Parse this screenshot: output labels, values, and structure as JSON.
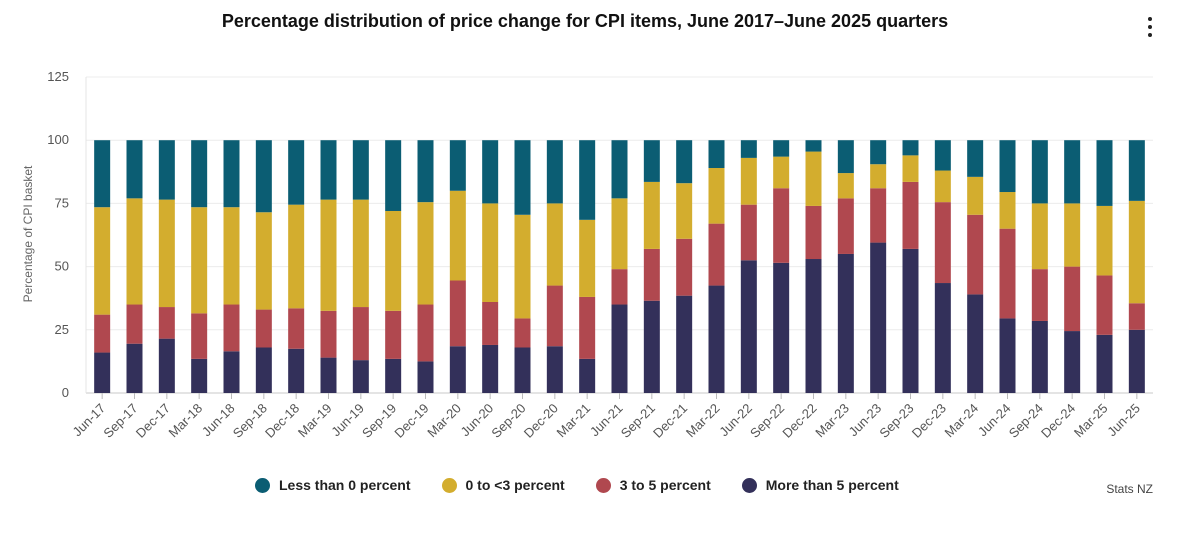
{
  "chart_data": {
    "type": "bar",
    "stacked": true,
    "title": "Percentage distribution of price change for CPI items, June 2017–June 2025 quarters",
    "xlabel": "",
    "ylabel": "Percentage of CPI basket",
    "ylim": [
      0,
      125
    ],
    "yticks": [
      0,
      25,
      50,
      75,
      100,
      125
    ],
    "grid": true,
    "legend_position": "bottom",
    "categories": [
      "Jun-17",
      "Sep-17",
      "Dec-17",
      "Mar-18",
      "Jun-18",
      "Sep-18",
      "Dec-18",
      "Mar-19",
      "Jun-19",
      "Sep-19",
      "Dec-19",
      "Mar-20",
      "Jun-20",
      "Sep-20",
      "Dec-20",
      "Mar-21",
      "Jun-21",
      "Sep-21",
      "Dec-21",
      "Mar-22",
      "Jun-22",
      "Sep-22",
      "Dec-22",
      "Mar-23",
      "Jun-23",
      "Sep-23",
      "Dec-23",
      "Mar-24",
      "Jun-24",
      "Sep-24",
      "Dec-24",
      "Mar-25",
      "Jun-25"
    ],
    "series": [
      {
        "name": "More than 5 percent",
        "color": "#33305a",
        "values": [
          16,
          19.5,
          21.5,
          13.5,
          16.5,
          18,
          17.5,
          14,
          13,
          13.5,
          12.5,
          18.5,
          19,
          18,
          18.5,
          13.5,
          35,
          36.5,
          38.5,
          42.5,
          52.5,
          51.5,
          53,
          55,
          59.5,
          57,
          43.5,
          39,
          29.5,
          28.5,
          24.5,
          23,
          25
        ]
      },
      {
        "name": "3 to 5 percent",
        "color": "#b0484f",
        "values": [
          15,
          15.5,
          12.5,
          18,
          18.5,
          15,
          16,
          18.5,
          21,
          19,
          22.5,
          26,
          17,
          11.5,
          24,
          24.5,
          14,
          20.5,
          22.5,
          24.5,
          22,
          29.5,
          21,
          22,
          21.5,
          26.5,
          32,
          31.5,
          35.5,
          20.5,
          25.5,
          23.5,
          10.5
        ]
      },
      {
        "name": "0 to <3 percent",
        "color": "#d3ad2e",
        "values": [
          42.5,
          42,
          42.5,
          42,
          38.5,
          38.5,
          41,
          44,
          42.5,
          39.5,
          40.5,
          35.5,
          39,
          41,
          32.5,
          30.5,
          28,
          26.5,
          22,
          22,
          18.5,
          12.5,
          21.5,
          10,
          9.5,
          10.5,
          12.5,
          15,
          14.5,
          26,
          25,
          27.5,
          40.5
        ]
      },
      {
        "name": "Less than 0 percent",
        "color": "#0b5d73",
        "values": [
          26.5,
          23,
          23.5,
          26.5,
          26.5,
          28.5,
          25.5,
          23.5,
          23.5,
          28,
          24.5,
          20,
          25,
          29.5,
          25,
          31.5,
          23,
          16.5,
          17,
          11,
          7,
          6.5,
          4.5,
          13,
          9.5,
          6,
          12,
          14.5,
          20.5,
          25,
          25,
          26,
          24
        ]
      }
    ]
  },
  "source": "Stats NZ"
}
